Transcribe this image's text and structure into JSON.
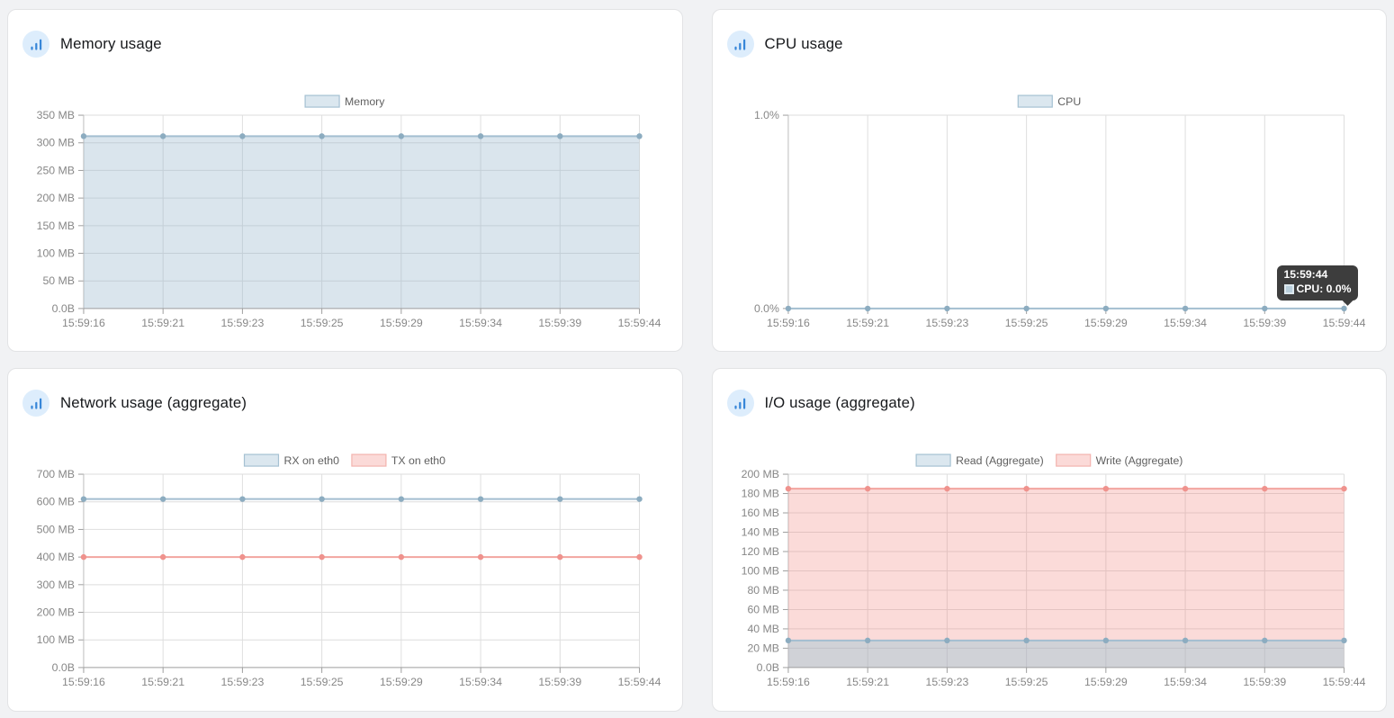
{
  "panels": [
    {
      "title": "Memory usage"
    },
    {
      "title": "CPU usage"
    },
    {
      "title": "Network usage (aggregate)"
    },
    {
      "title": "I/O usage (aggregate)"
    }
  ],
  "tooltip": {
    "title": "15:59:44",
    "label": "CPU: 0.0%"
  },
  "colors": {
    "page_bg": "#f1f2f4",
    "grid": "#dedede",
    "axis": "#9e9e9e",
    "axis_border": "#bdbdbd",
    "tick_text": "#878787",
    "legend_text": "#5f5f5f",
    "tooltip_bg": "#3d3d3d",
    "icon_blue": "#3786d8",
    "icon_bg": "#ddedfc",
    "series_blue": {
      "line": "#a3bed0",
      "fill": "rgba(148,180,203,0.35)",
      "point": "#8cacc0",
      "legend_fill": "#dbe7ef",
      "legend_border": "#a5c1d2"
    },
    "series_red": {
      "line": "#f2a49f",
      "fill": "rgba(241,130,125,0.29)",
      "point": "#ef928d",
      "legend_fill": "#fbdad8",
      "legend_border": "#f3b3ae"
    }
  },
  "chart_data": [
    {
      "type": "area",
      "title": "Memory usage",
      "categories": [
        "15:59:16",
        "15:59:21",
        "15:59:23",
        "15:59:25",
        "15:59:29",
        "15:59:34",
        "15:59:39",
        "15:59:44"
      ],
      "series": [
        {
          "name": "Memory",
          "color": "blue",
          "fill": true,
          "values": [
            312,
            312,
            312,
            312,
            312,
            312,
            312,
            312
          ]
        }
      ],
      "ylim": [
        0,
        350
      ],
      "y_tick_labels": [
        "0.0B",
        "50 MB",
        "100 MB",
        "150 MB",
        "200 MB",
        "250 MB",
        "300 MB",
        "350 MB"
      ],
      "legend_position": "top",
      "grid": true
    },
    {
      "type": "line",
      "title": "CPU usage",
      "categories": [
        "15:59:16",
        "15:59:21",
        "15:59:23",
        "15:59:25",
        "15:59:29",
        "15:59:34",
        "15:59:39",
        "15:59:44"
      ],
      "series": [
        {
          "name": "CPU",
          "color": "blue",
          "fill": false,
          "values": [
            0,
            0,
            0,
            0,
            0,
            0,
            0,
            0
          ]
        }
      ],
      "ylim": [
        0,
        1
      ],
      "y_tick_labels": [
        "0.0%",
        "1.0%"
      ],
      "legend_position": "top",
      "grid": true,
      "tooltip": {
        "title": "15:59:44",
        "series": "CPU",
        "value": "0.0%"
      }
    },
    {
      "type": "line",
      "title": "Network usage (aggregate)",
      "categories": [
        "15:59:16",
        "15:59:21",
        "15:59:23",
        "15:59:25",
        "15:59:29",
        "15:59:34",
        "15:59:39",
        "15:59:44"
      ],
      "series": [
        {
          "name": "RX on eth0",
          "color": "blue",
          "fill": false,
          "values": [
            610,
            610,
            610,
            610,
            610,
            610,
            610,
            610
          ]
        },
        {
          "name": "TX on eth0",
          "color": "red",
          "fill": false,
          "values": [
            400,
            400,
            400,
            400,
            400,
            400,
            400,
            400
          ]
        }
      ],
      "ylim": [
        0,
        700
      ],
      "y_tick_labels": [
        "0.0B",
        "100 MB",
        "200 MB",
        "300 MB",
        "400 MB",
        "500 MB",
        "600 MB",
        "700 MB"
      ],
      "legend_position": "top",
      "grid": true
    },
    {
      "type": "area",
      "title": "I/O usage (aggregate)",
      "categories": [
        "15:59:16",
        "15:59:21",
        "15:59:23",
        "15:59:25",
        "15:59:29",
        "15:59:34",
        "15:59:39",
        "15:59:44"
      ],
      "series": [
        {
          "name": "Write (Aggregate)",
          "color": "red",
          "fill": true,
          "values": [
            185,
            185,
            185,
            185,
            185,
            185,
            185,
            185
          ],
          "legend_order": 1
        },
        {
          "name": "Read (Aggregate)",
          "color": "blue",
          "fill": true,
          "fill_color": "rgba(140,195,212,0.38)",
          "values": [
            28,
            28,
            28,
            28,
            28,
            28,
            28,
            28
          ],
          "legend_order": 0
        }
      ],
      "ylim": [
        0,
        200
      ],
      "y_tick_labels": [
        "0.0B",
        "20 MB",
        "40 MB",
        "60 MB",
        "80 MB",
        "100 MB",
        "120 MB",
        "140 MB",
        "160 MB",
        "180 MB",
        "200 MB"
      ],
      "legend_position": "top",
      "grid": true
    }
  ]
}
